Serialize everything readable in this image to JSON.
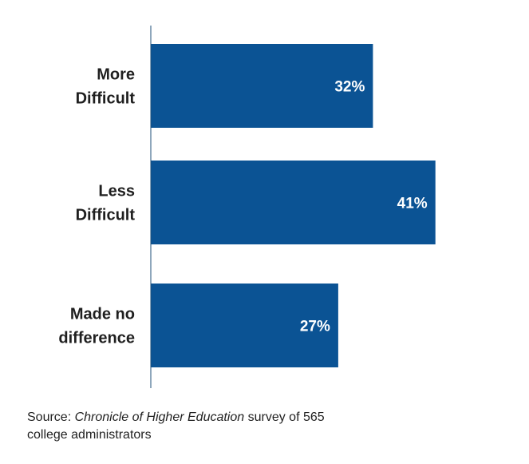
{
  "chart_data": {
    "type": "bar",
    "orientation": "horizontal",
    "categories": [
      [
        "More",
        "Difficult"
      ],
      [
        "Less",
        "Difficult"
      ],
      [
        "Made no",
        "difference"
      ]
    ],
    "values": [
      32,
      41,
      27
    ],
    "value_labels": [
      "32%",
      "41%",
      "27%"
    ],
    "unit": "%",
    "xlim": [
      0,
      50
    ],
    "bar_color": "#0b5394",
    "grid": false,
    "legend": "none"
  },
  "source": {
    "prefix": "Source: ",
    "publication": "Chronicle of Higher Education",
    "suffix": " survey of 565 college administrators"
  }
}
